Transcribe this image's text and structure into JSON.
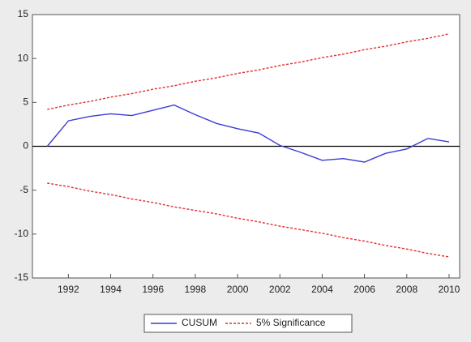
{
  "chart_data": {
    "type": "line",
    "x": [
      1991,
      1992,
      1993,
      1994,
      1995,
      1996,
      1997,
      1998,
      1999,
      2000,
      2001,
      2002,
      2003,
      2004,
      2005,
      2006,
      2007,
      2008,
      2009,
      2010
    ],
    "series": [
      {
        "name": "CUSUM",
        "color": "#3b3bd6",
        "values": [
          0,
          2.9,
          3.4,
          3.7,
          3.5,
          4.1,
          4.7,
          3.6,
          2.6,
          2.0,
          1.5,
          0.1,
          -0.7,
          -1.6,
          -1.4,
          -1.8,
          -0.8,
          -0.3,
          0.9,
          0.5
        ]
      },
      {
        "name": "5% Significance",
        "color": "#e03030",
        "dashed": true,
        "upper": [
          4.2,
          4.7,
          5.1,
          5.6,
          6.0,
          6.5,
          6.9,
          7.4,
          7.8,
          8.3,
          8.7,
          9.2,
          9.6,
          10.1,
          10.5,
          11.0,
          11.4,
          11.9,
          12.3,
          12.8
        ],
        "lower": [
          -4.2,
          -4.6,
          -5.1,
          -5.5,
          -6.0,
          -6.4,
          -6.9,
          -7.3,
          -7.7,
          -8.2,
          -8.6,
          -9.1,
          -9.5,
          -9.9,
          -10.4,
          -10.8,
          -11.3,
          -11.7,
          -12.2,
          -12.6
        ]
      }
    ],
    "xlim": [
      1990.3,
      2010.5
    ],
    "xticks": [
      1992,
      1994,
      1996,
      1998,
      2000,
      2002,
      2004,
      2006,
      2008,
      2010
    ],
    "ylim": [
      -15,
      15
    ],
    "yticks": [
      -15,
      -10,
      -5,
      0,
      5,
      10,
      15
    ],
    "zero_line": true
  }
}
